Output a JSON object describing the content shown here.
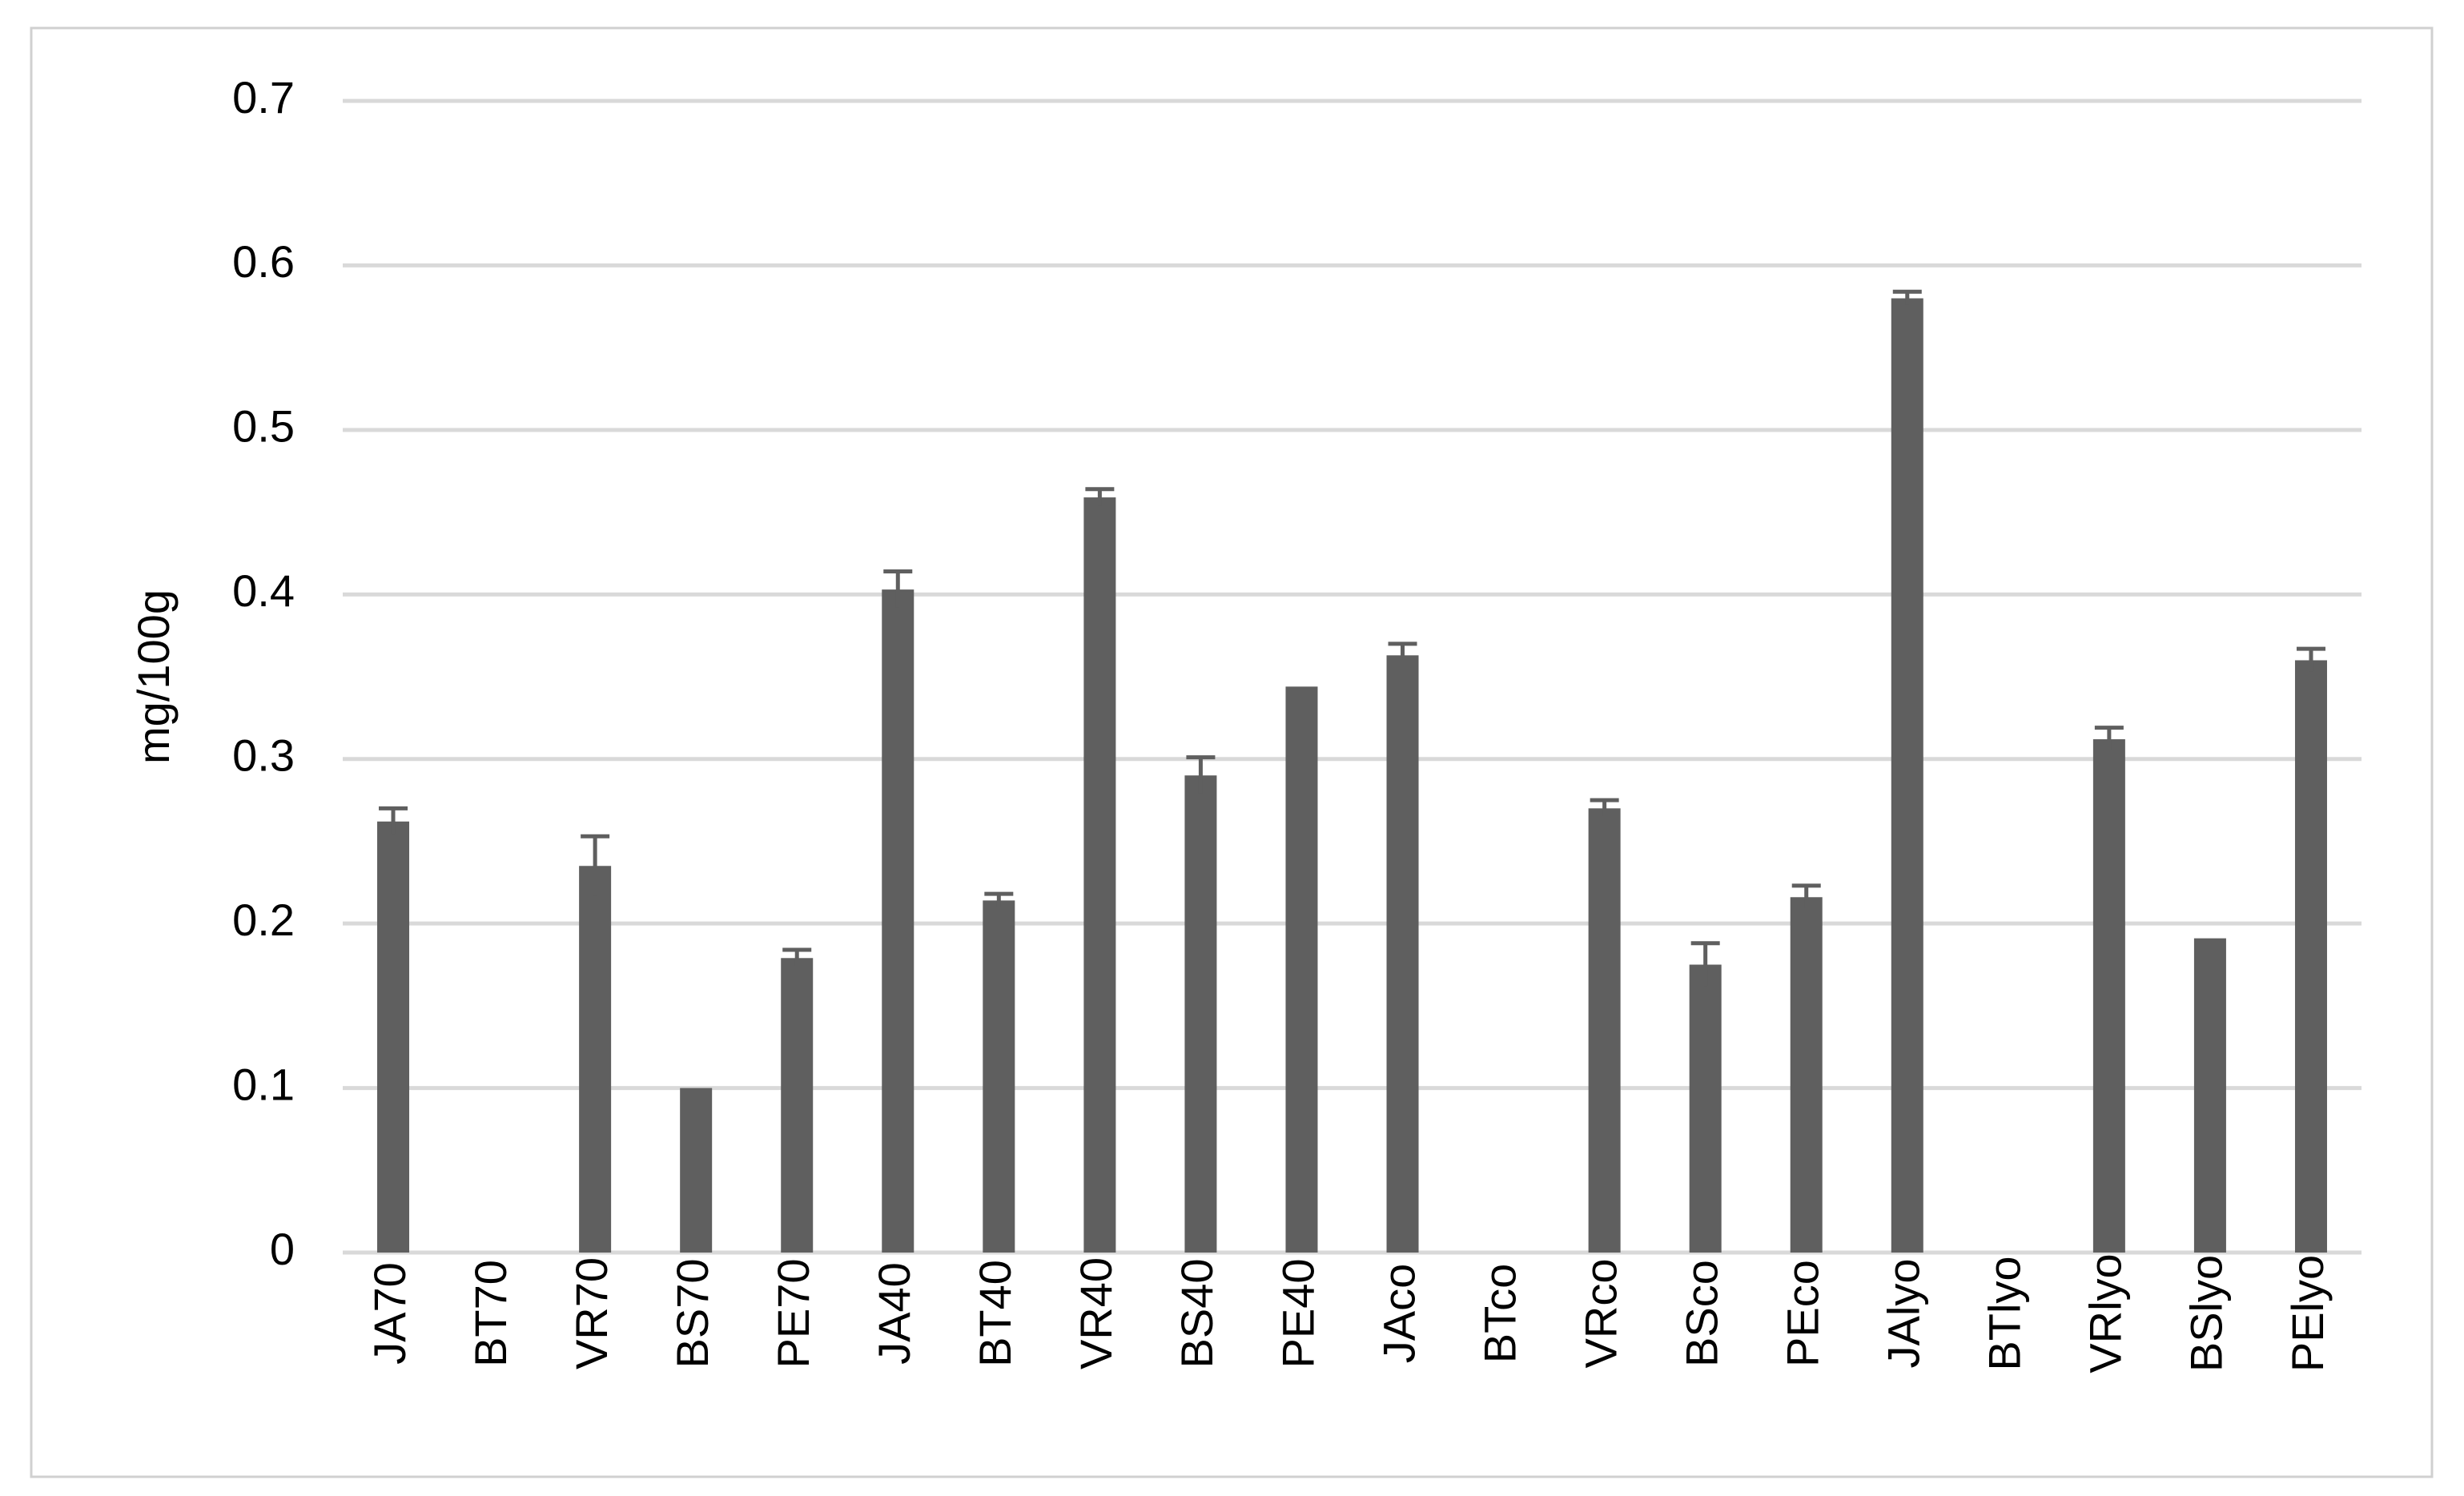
{
  "chart_data": {
    "type": "bar",
    "ylabel": "mg/100g",
    "categories": [
      "JA70",
      "BT70",
      "VR70",
      "BS70",
      "PE70",
      "JA40",
      "BT40",
      "VR40",
      "BS40",
      "PE40",
      "JAco",
      "BTco",
      "VRco",
      "BSco",
      "PEco",
      "JAlyo",
      "BTlyo",
      "VRlyo",
      "BSlyo",
      "PElyo"
    ],
    "values": [
      0.262,
      0,
      0.235,
      0.1,
      0.179,
      0.403,
      0.214,
      0.459,
      0.29,
      0.344,
      0.363,
      0,
      0.27,
      0.175,
      0.216,
      0.58,
      0,
      0.312,
      0.191,
      0.36
    ],
    "errors": [
      0.008,
      null,
      0.018,
      null,
      0.005,
      0.011,
      0.004,
      0.005,
      0.011,
      null,
      0.007,
      null,
      0.005,
      0.013,
      0.007,
      0.004,
      null,
      0.007,
      null,
      0.007
    ],
    "color": "#5f5f5f",
    "ylim": [
      0,
      0.7
    ],
    "yticks": [
      0,
      0.1,
      0.2,
      0.3,
      0.4,
      0.5,
      0.6,
      0.7
    ],
    "grid": true
  }
}
